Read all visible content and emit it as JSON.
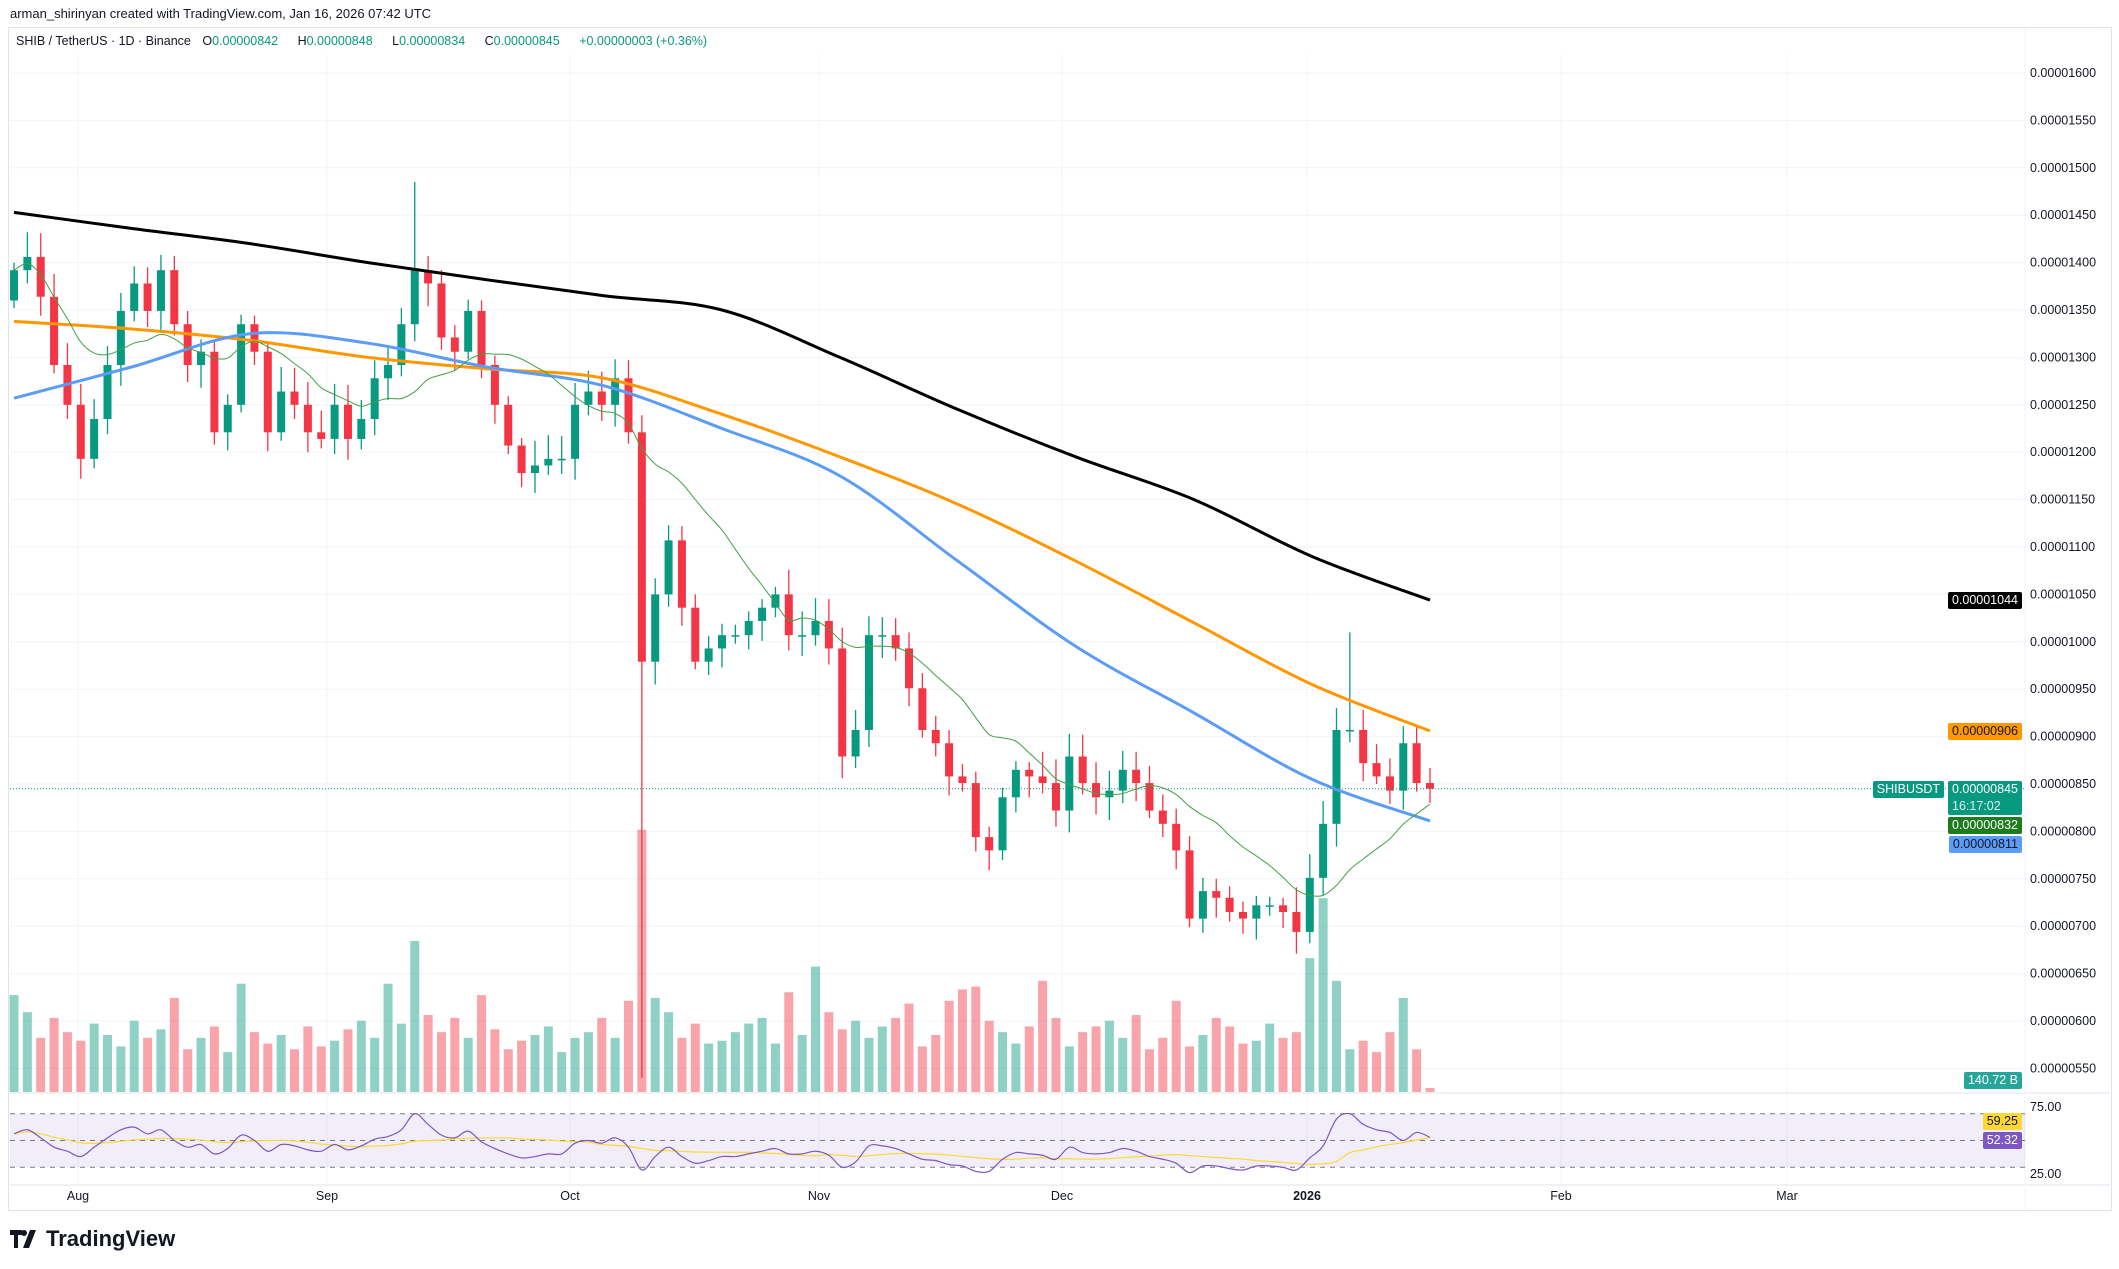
{
  "credit": "arman_shirinyan created with TradingView.com, Jan 16, 2026 07:42 UTC",
  "legend": {
    "symbol": "SHIB / TetherUS · 1D · Binance",
    "o_label": "O",
    "o": "0.00000842",
    "h_label": "H",
    "h": "0.00000848",
    "l_label": "L",
    "l": "0.00000834",
    "c_label": "C",
    "c": "0.00000845",
    "change": "+0.00000003 (+0.36%)"
  },
  "brand": "TradingView",
  "colors": {
    "up": "#089981",
    "down": "#f23645",
    "ma200": "#000000",
    "ma100": "#ff9800",
    "ma50": "#5b9cf6",
    "ma20": "#43a047",
    "rsi": "#7e57c2",
    "rsi_ma": "#fdd835"
  },
  "chart_data": {
    "type": "candlestick",
    "price_axis": [
      "0.00001600",
      "0.00001550",
      "0.00001500",
      "0.00001450",
      "0.00001400",
      "0.00001350",
      "0.00001300",
      "0.00001250",
      "0.00001200",
      "0.00001150",
      "0.00001100",
      "0.00001050",
      "0.00001000",
      "0.00000950",
      "0.00000900",
      "0.00000850",
      "0.00000800",
      "0.00000750",
      "0.00000700",
      "0.00000650",
      "0.00000600",
      "0.00000550"
    ],
    "time_axis": [
      {
        "label": "Aug",
        "bold": false
      },
      {
        "label": "Sep",
        "bold": false
      },
      {
        "label": "Oct",
        "bold": false
      },
      {
        "label": "Nov",
        "bold": false
      },
      {
        "label": "Dec",
        "bold": false
      },
      {
        "label": "2026",
        "bold": true
      },
      {
        "label": "Feb",
        "bold": false
      },
      {
        "label": "Mar",
        "bold": false
      }
    ],
    "first_open": 1.36e-05,
    "closes": [
      1.392e-05,
      1.406e-05,
      1.364e-05,
      1.292e-05,
      1.25e-05,
      1.193e-05,
      1.235e-05,
      1.292e-05,
      1.349e-05,
      1.378e-05,
      1.349e-05,
      1.392e-05,
      1.335e-05,
      1.292e-05,
      1.306e-05,
      1.221e-05,
      1.25e-05,
      1.335e-05,
      1.306e-05,
      1.221e-05,
      1.264e-05,
      1.25e-05,
      1.221e-05,
      1.214e-05,
      1.25e-05,
      1.214e-05,
      1.235e-05,
      1.278e-05,
      1.292e-05,
      1.335e-05,
      1.392e-05,
      1.378e-05,
      1.321e-05,
      1.306e-05,
      1.349e-05,
      1.292e-05,
      1.25e-05,
      1.207e-05,
      1.178e-05,
      1.186e-05,
      1.193e-05,
      1.193e-05,
      1.25e-05,
      1.264e-05,
      1.25e-05,
      1.278e-05,
      1.221e-05,
      9.79e-06,
      1.05e-05,
      1.107e-05,
      1.036e-05,
      9.79e-06,
      9.93e-06,
      1.007e-05,
      1.007e-05,
      1.022e-05,
      1.036e-05,
      1.05e-05,
      1.007e-05,
      1.007e-05,
      1.022e-05,
      9.93e-06,
      8.79e-06,
      9.07e-06,
      1.007e-05,
      1.007e-05,
      9.93e-06,
      9.51e-06,
      9.07e-06,
      8.93e-06,
      8.58e-06,
      8.51e-06,
      7.94e-06,
      7.8e-06,
      8.36e-06,
      8.65e-06,
      8.58e-06,
      8.51e-06,
      8.22e-06,
      8.79e-06,
      8.51e-06,
      8.36e-06,
      8.43e-06,
      8.65e-06,
      8.51e-06,
      8.22e-06,
      8.08e-06,
      7.8e-06,
      7.08e-06,
      7.37e-06,
      7.3e-06,
      7.15e-06,
      7.08e-06,
      7.22e-06,
      7.22e-06,
      7.15e-06,
      6.94e-06,
      7.51e-06,
      8.08e-06,
      9.07e-06,
      9.07e-06,
      8.72e-06,
      8.58e-06,
      8.43e-06,
      8.93e-06,
      8.51e-06,
      8.45e-06
    ],
    "extreme_wicks": [
      {
        "index": 30,
        "high": 1.485e-05
      },
      {
        "index": 47,
        "low": 5.4e-06
      },
      {
        "index": 100,
        "high": 1.01e-05
      }
    ],
    "volumes_B": [
      3400,
      2800,
      1900,
      2600,
      2100,
      1800,
      2400,
      2000,
      1600,
      2500,
      1900,
      2200,
      3300,
      1500,
      1900,
      2300,
      1400,
      3800,
      2100,
      1700,
      2000,
      1500,
      2300,
      1600,
      1800,
      2200,
      2500,
      1900,
      3800,
      2400,
      5300,
      2700,
      2100,
      2600,
      1900,
      3400,
      2200,
      1500,
      1800,
      2000,
      2300,
      1400,
      1900,
      2100,
      2600,
      1900,
      3200,
      9200,
      3300,
      2800,
      1900,
      2400,
      1700,
      1800,
      2100,
      2400,
      2600,
      1700,
      3500,
      2000,
      4400,
      2800,
      2200,
      2500,
      1900,
      2300,
      2600,
      3100,
      1600,
      2000,
      3200,
      3600,
      3700,
      2500,
      2100,
      1700,
      2300,
      3900,
      2600,
      1600,
      2100,
      2300,
      2500,
      1900,
      2700,
      1500,
      1900,
      3200,
      1600,
      2000,
      2600,
      2300,
      1700,
      1800,
      2400,
      1900,
      2100,
      4700,
      6800,
      3900,
      1500,
      1800,
      1400,
      2100,
      3300,
      1500,
      140.72
    ],
    "ma200": [
      1.453e-05,
      1.436e-05,
      1.42e-05,
      1.4e-05,
      1.382e-05,
      1.365e-05,
      1.35e-05,
      1.3e-05,
      1.245e-05,
      1.195e-05,
      1.15e-05,
      1.09e-05,
      1.044e-05
    ],
    "ma100": [
      1.338e-05,
      1.33e-05,
      1.318e-05,
      1.3e-05,
      1.288e-05,
      1.278e-05,
      1.24e-05,
      1.195e-05,
      1.145e-05,
      1.085e-05,
      1.02e-05,
      9.55e-06,
      9.06e-06
    ],
    "ma50": [
      1.257e-05,
      1.29e-05,
      1.325e-05,
      1.315e-05,
      1.29e-05,
      1.27e-05,
      1.225e-05,
      1.175e-05,
      1.085e-05,
      9.95e-06,
      9.25e-06,
      8.55e-06,
      8.11e-06
    ],
    "rsi": [
      55,
      58,
      52,
      45,
      42,
      38,
      45,
      52,
      58,
      60,
      55,
      58,
      50,
      45,
      47,
      40,
      44,
      54,
      50,
      42,
      47,
      46,
      43,
      42,
      47,
      43,
      46,
      51,
      53,
      58,
      70,
      62,
      54,
      52,
      57,
      49,
      44,
      40,
      37,
      38,
      40,
      40,
      48,
      50,
      48,
      52,
      45,
      28,
      38,
      45,
      38,
      33,
      35,
      38,
      38,
      40,
      42,
      44,
      40,
      40,
      42,
      39,
      30,
      34,
      46,
      46,
      44,
      40,
      36,
      35,
      32,
      31,
      27,
      27,
      36,
      41,
      40,
      39,
      36,
      45,
      41,
      40,
      41,
      44,
      42,
      38,
      36,
      33,
      26,
      31,
      31,
      29,
      28,
      31,
      31,
      30,
      28,
      37,
      46,
      66,
      70,
      62,
      58,
      56,
      50,
      56,
      52.32
    ],
    "rsi_axis": [
      "75.00",
      "25.00"
    ],
    "rsi_bands": [
      70,
      50,
      30
    ],
    "tags": {
      "ma200": "0.00001044",
      "ma100": "0.00000906",
      "symbol": "SHIBUSDT",
      "last": "0.00000845",
      "countdown": "16:17:02",
      "ma20": "0.00000832",
      "ma50": "0.00000811",
      "volume": "140.72 B",
      "rsi_ma": "59.25",
      "rsi": "52.32"
    }
  }
}
